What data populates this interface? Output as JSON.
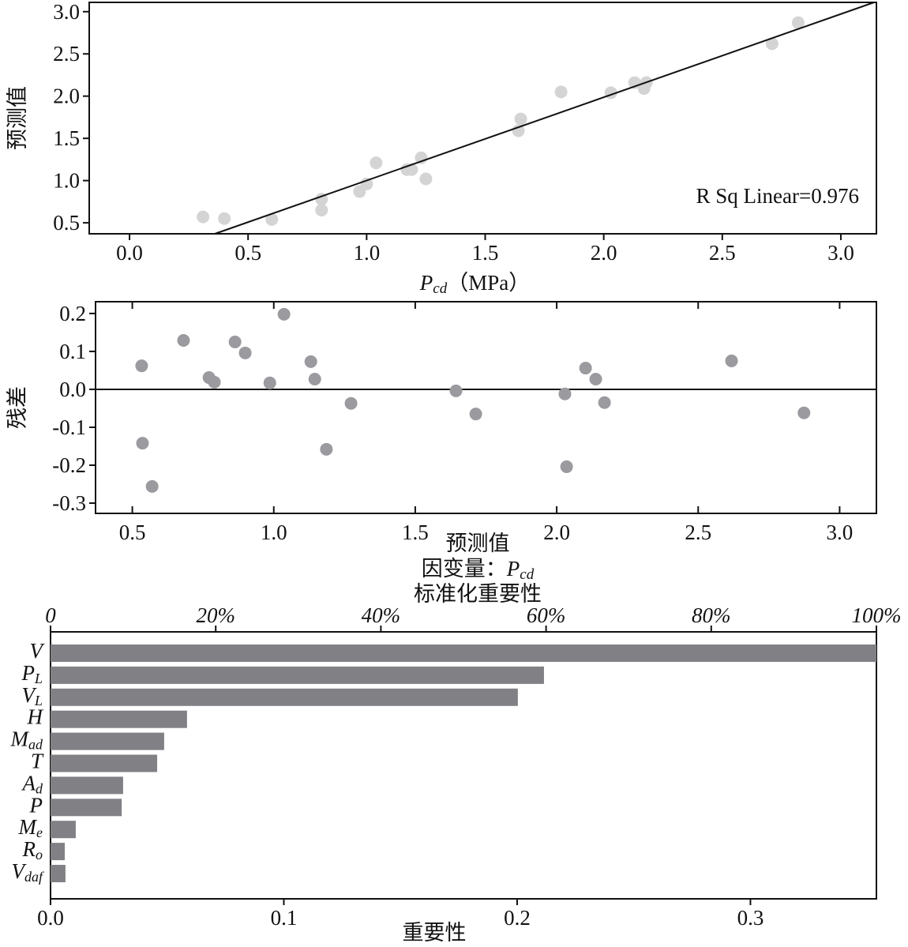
{
  "chart_data": [
    {
      "type": "scatter",
      "xlabel": {
        "symbol": "P",
        "subscript": "cd",
        "unit": "（MPa）"
      },
      "ylabel": "预测值",
      "annotation": "R Sq Linear=0.976",
      "color": "#d4d4d4",
      "x": [
        0.31,
        0.4,
        0.6,
        0.81,
        0.81,
        0.97,
        1.0,
        1.04,
        1.17,
        1.19,
        1.23,
        1.25,
        1.64,
        1.65,
        1.82,
        2.03,
        2.13,
        2.17,
        2.18,
        2.71,
        2.82
      ],
      "y": [
        0.57,
        0.55,
        0.54,
        0.78,
        0.65,
        0.87,
        0.96,
        1.21,
        1.13,
        1.13,
        1.27,
        1.02,
        1.59,
        1.73,
        2.05,
        2.04,
        2.16,
        2.09,
        2.16,
        2.62,
        2.87
      ],
      "fit_line": {
        "x": [
          0.36,
          3.14
        ],
        "y": [
          0.37,
          3.11
        ]
      },
      "xlim": [
        -0.17,
        3.15
      ],
      "ylim": [
        0.37,
        3.11
      ],
      "xticks": [
        {
          "value": 0,
          "label": "0.0"
        },
        0.5,
        {
          "value": 1,
          "label": "1.0"
        },
        1.5,
        {
          "value": 2,
          "label": "2.0"
        },
        2.5,
        {
          "value": 3,
          "label": "3.0"
        }
      ],
      "yticks": [
        0.5,
        {
          "value": 1,
          "label": "1.0"
        },
        1.5,
        {
          "value": 2,
          "label": "2.0"
        },
        2.5,
        {
          "value": 3,
          "label": "3.0"
        }
      ]
    },
    {
      "type": "scatter",
      "xlabel": "预测值",
      "subtitle": {
        "text": "因变量：",
        "symbol": "P",
        "subscript": "cd"
      },
      "ylabel": "残差",
      "color": "#9a9a9f",
      "hline": 0,
      "x": [
        0.533,
        0.536,
        0.57,
        0.681,
        0.771,
        0.79,
        0.863,
        0.899,
        0.986,
        1.036,
        1.131,
        1.145,
        1.186,
        1.273,
        1.644,
        1.714,
        2.029,
        2.035,
        2.102,
        2.138,
        2.169,
        2.618,
        2.874
      ],
      "y": [
        0.062,
        -0.142,
        -0.256,
        0.129,
        0.031,
        0.019,
        0.125,
        0.096,
        0.017,
        0.198,
        0.073,
        0.027,
        -0.158,
        -0.037,
        -0.004,
        -0.065,
        -0.012,
        -0.204,
        0.056,
        0.027,
        -0.035,
        0.075,
        -0.062
      ],
      "xlim": [
        0.37,
        3.13
      ],
      "ylim": [
        -0.327,
        0.231
      ],
      "xticks": [
        0.5,
        {
          "value": 1,
          "label": "1.0"
        },
        1.5,
        {
          "value": 2,
          "label": "2.0"
        },
        2.5,
        {
          "value": 3,
          "label": "3.0"
        }
      ],
      "yticks": [
        0.2,
        0.1,
        {
          "value": 0,
          "label": "0.0"
        },
        -0.1,
        -0.2,
        -0.3
      ]
    },
    {
      "type": "bar",
      "title": "标准化重要性",
      "xlabel": "重要性",
      "color": "#808085",
      "categories": [
        {
          "symbol": "V"
        },
        {
          "symbol": "P",
          "subscript": "L"
        },
        {
          "symbol": "V",
          "subscript": "L"
        },
        {
          "symbol": "H"
        },
        {
          "symbol": "M",
          "subscript": "ad"
        },
        {
          "symbol": "T"
        },
        {
          "symbol": "A",
          "subscript": "d"
        },
        {
          "symbol": "P"
        },
        {
          "symbol": "M",
          "subscript": "e"
        },
        {
          "symbol": "R",
          "subscript": "o"
        },
        {
          "symbol": "V",
          "subscript": "daf"
        }
      ],
      "values": [
        0.354,
        0.2115,
        0.2003,
        0.0585,
        0.0487,
        0.0457,
        0.0311,
        0.0305,
        0.0108,
        0.0061,
        0.0064
      ],
      "xlim": [
        0,
        0.354
      ],
      "xticks": [
        {
          "value": 0,
          "label": "0.0"
        },
        0.1,
        0.2,
        0.3
      ],
      "x2lim": [
        0,
        100
      ],
      "x2ticks": [
        0,
        {
          "value": 20,
          "label": "20%"
        },
        {
          "value": 40,
          "label": "40%"
        },
        {
          "value": 60,
          "label": "60%"
        },
        {
          "value": 80,
          "label": "80%"
        },
        {
          "value": 100,
          "label": "100%"
        }
      ]
    }
  ]
}
